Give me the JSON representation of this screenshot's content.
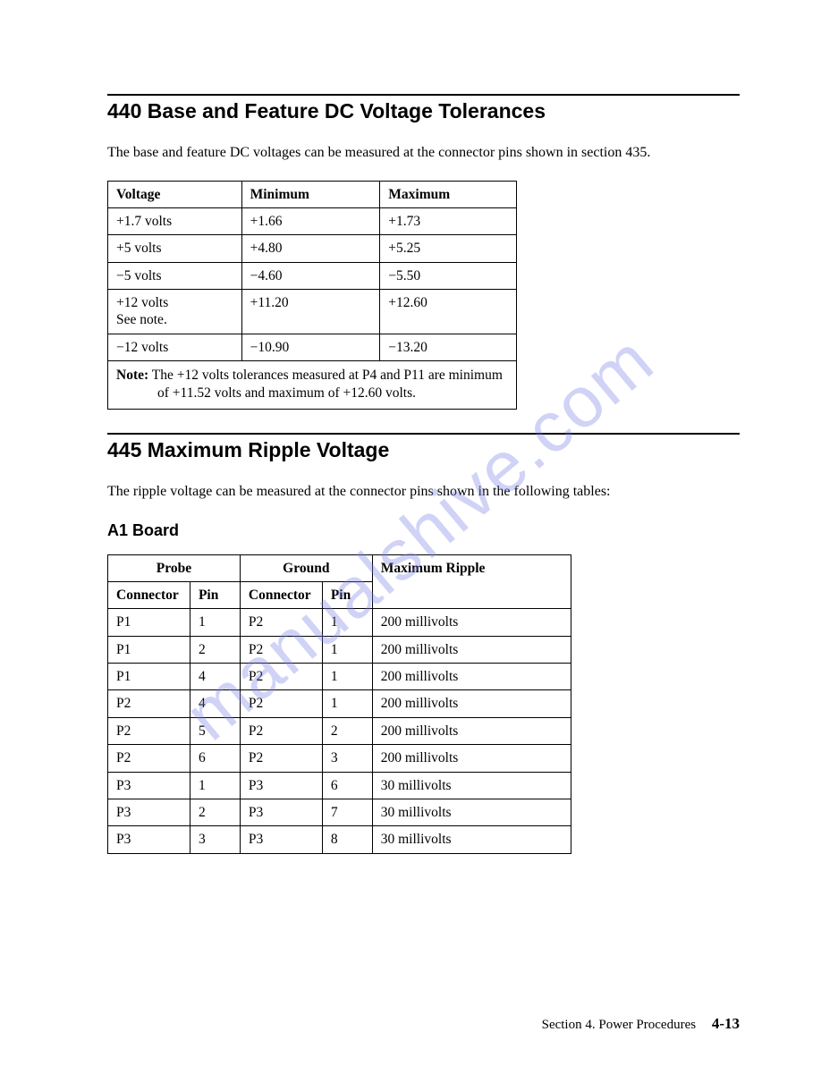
{
  "section440": {
    "heading": "440  Base and Feature DC Voltage Tolerances",
    "intro": "The base and feature DC voltages can be measured at the connector pins shown in section 435.",
    "columns": [
      "Voltage",
      "Minimum",
      "Maximum"
    ],
    "rows": [
      [
        "+1.7 volts",
        "+1.66",
        "+1.73"
      ],
      [
        "+5 volts",
        "+4.80",
        "+5.25"
      ],
      [
        "−5 volts",
        "−4.60",
        "−5.50"
      ],
      [
        "+12 volts\nSee note.",
        "+11.20",
        "+12.60"
      ],
      [
        "−12 volts",
        "−10.90",
        "−13.20"
      ]
    ],
    "note_label": "Note:",
    "note_text": "The +12 volts tolerances measured at P4 and P11 are minimum of +11.52 volts and maximum of +12.60 volts."
  },
  "section445": {
    "heading": "445  Maximum Ripple Voltage",
    "intro": "The ripple voltage can be measured at the connector pins shown in the following tables:",
    "subheading": "A1 Board",
    "group_headers": [
      "Probe",
      "Ground",
      ""
    ],
    "columns": [
      "Connector",
      "Pin",
      "Connector",
      "Pin",
      "Maximum Ripple"
    ],
    "rows": [
      [
        "P1",
        "1",
        "P2",
        "1",
        "200 millivolts"
      ],
      [
        "P1",
        "2",
        "P2",
        "1",
        "200 millivolts"
      ],
      [
        "P1",
        "4",
        "P2",
        "1",
        "200 millivolts"
      ],
      [
        "P2",
        "4",
        "P2",
        "1",
        "200 millivolts"
      ],
      [
        "P2",
        "5",
        "P2",
        "2",
        "200 millivolts"
      ],
      [
        "P2",
        "6",
        "P2",
        "3",
        "200 millivolts"
      ],
      [
        "P3",
        "1",
        "P3",
        "6",
        "30 millivolts"
      ],
      [
        "P3",
        "2",
        "P3",
        "7",
        "30 millivolts"
      ],
      [
        "P3",
        "3",
        "P3",
        "8",
        "30 millivolts"
      ]
    ]
  },
  "footer": {
    "section_label": "Section 4.  Power Procedures",
    "page_number": "4-13"
  },
  "watermark": "manualshive.com",
  "style": {
    "background_color": "#ffffff",
    "text_color": "#000000",
    "watermark_color": "rgba(120,130,230,0.35)",
    "heading_font": "Helvetica",
    "body_font": "Times New Roman",
    "heading_size_pt": 17,
    "subheading_size_pt": 13,
    "body_size_pt": 12,
    "border_color": "#000000"
  }
}
